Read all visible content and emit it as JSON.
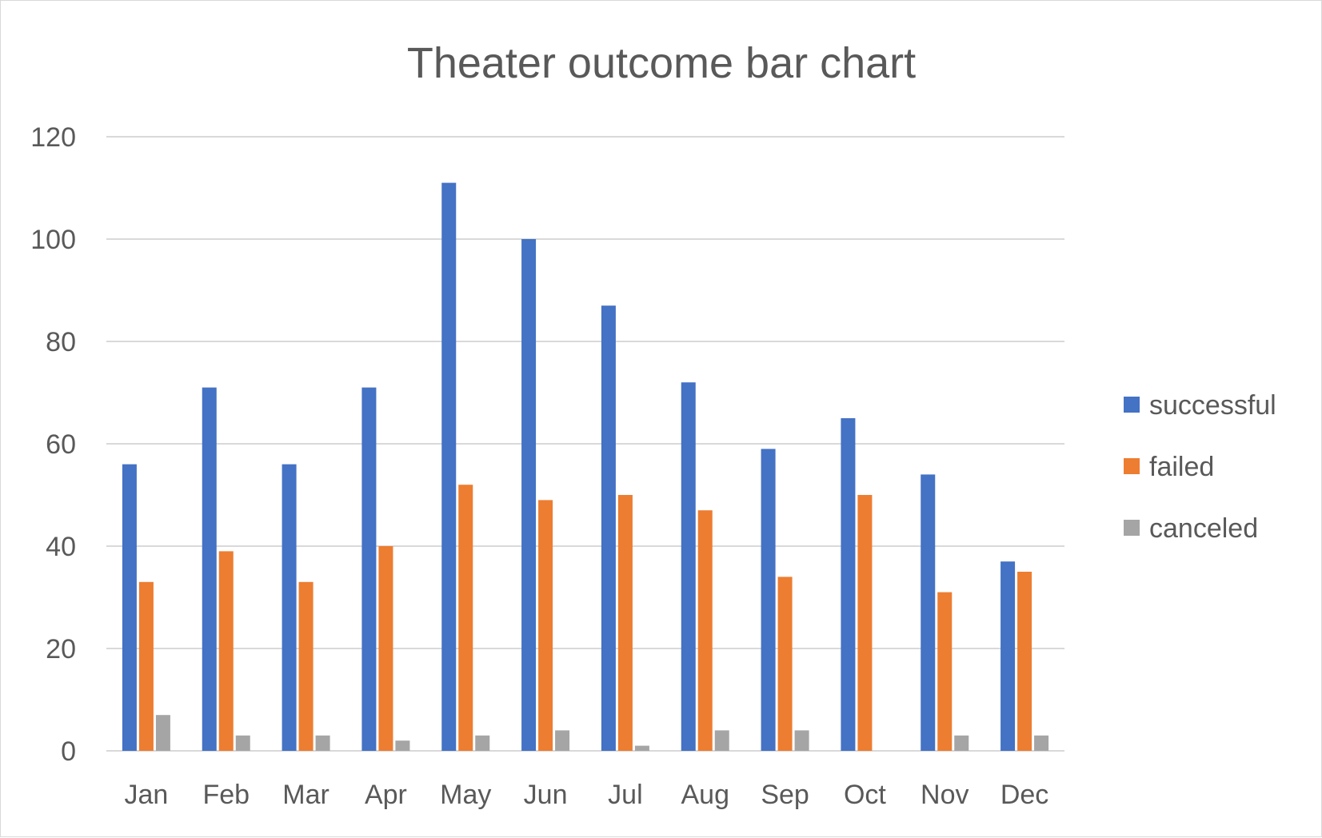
{
  "chart_data": {
    "type": "bar",
    "title": "Theater outcome bar chart",
    "xlabel": "",
    "ylabel": "",
    "categories": [
      "Jan",
      "Feb",
      "Mar",
      "Apr",
      "May",
      "Jun",
      "Jul",
      "Aug",
      "Sep",
      "Oct",
      "Nov",
      "Dec"
    ],
    "series": [
      {
        "name": "successful",
        "color": "#4472C4",
        "values": [
          56,
          71,
          56,
          71,
          111,
          100,
          87,
          72,
          59,
          65,
          54,
          37
        ]
      },
      {
        "name": "failed",
        "color": "#ED7D31",
        "values": [
          33,
          39,
          33,
          40,
          52,
          49,
          50,
          47,
          34,
          50,
          31,
          35
        ]
      },
      {
        "name": "canceled",
        "color": "#A5A5A5",
        "values": [
          7,
          3,
          3,
          2,
          3,
          4,
          1,
          4,
          4,
          0,
          3,
          3
        ]
      }
    ],
    "ylim": [
      0,
      120
    ],
    "yticks": [
      0,
      20,
      40,
      60,
      80,
      100,
      120
    ],
    "grid": true,
    "legend": "right"
  }
}
